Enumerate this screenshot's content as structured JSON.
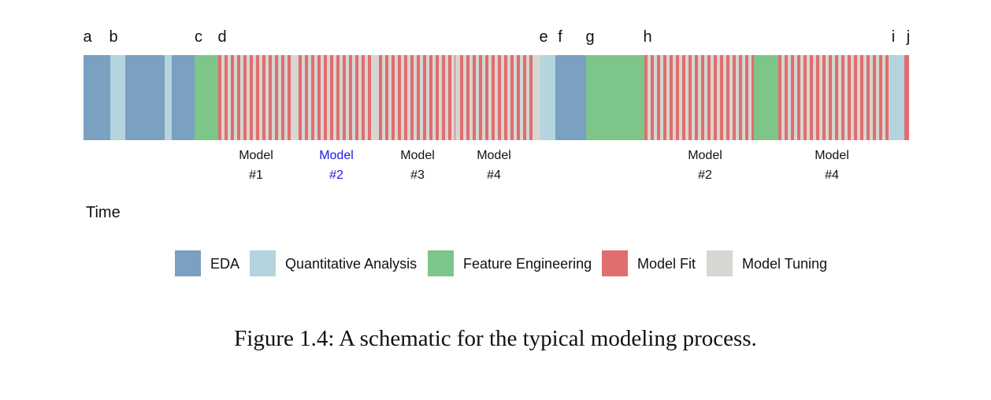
{
  "process_schematic": {
    "colors": {
      "eda": "#7aa0c2",
      "quantitative_analysis": "#b4d4de",
      "feature_engineering": "#7dc589",
      "model_fit": "#e06e6e",
      "model_tuning": "#d6d6d2",
      "highlight_text": "#1a1ae6",
      "text": "#111111"
    },
    "event_labels": [
      "a",
      "b",
      "c",
      "d",
      "e",
      "f",
      "g",
      "h",
      "i",
      "j"
    ],
    "model_labels": [
      {
        "name": "Model",
        "number": "#1",
        "highlight": false
      },
      {
        "name": "Model",
        "number": "#2",
        "highlight": true
      },
      {
        "name": "Model",
        "number": "#3",
        "highlight": false
      },
      {
        "name": "Model",
        "number": "#4",
        "highlight": false
      },
      {
        "name": "Model",
        "number": "#2",
        "highlight": false
      },
      {
        "name": "Model",
        "number": "#4",
        "highlight": false
      }
    ],
    "time_label": "Time",
    "legend": [
      {
        "key": "eda",
        "label": "EDA"
      },
      {
        "key": "quantitative_analysis",
        "label": "Quantitative Analysis"
      },
      {
        "key": "feature_engineering",
        "label": "Feature Engineering"
      },
      {
        "key": "model_fit",
        "label": "Model Fit"
      },
      {
        "key": "model_tuning",
        "label": "Model Tuning"
      }
    ]
  },
  "caption": "Figure 1.4: A schematic for the typical modeling process."
}
